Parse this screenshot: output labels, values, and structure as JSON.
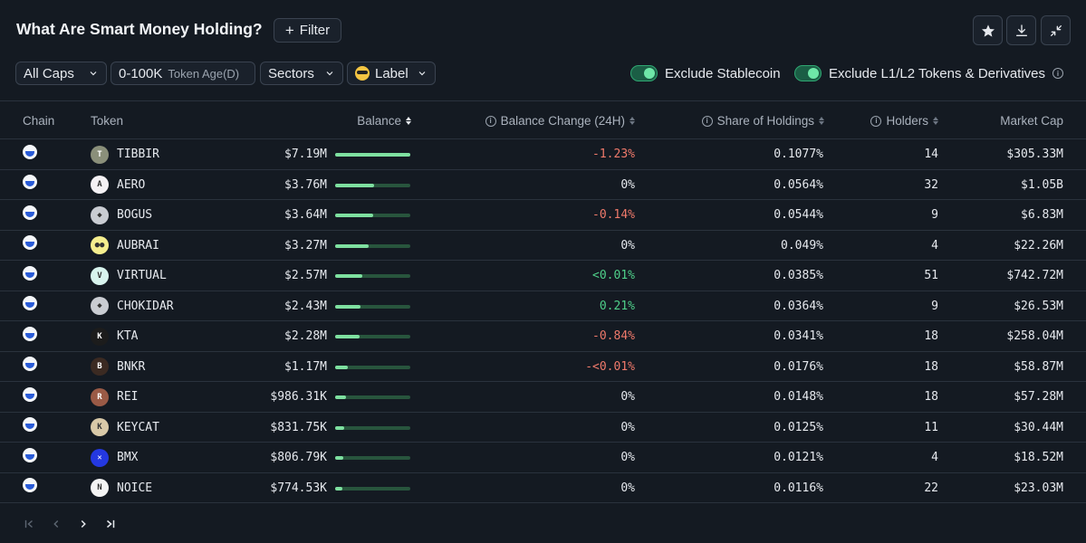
{
  "header": {
    "title": "What Are Smart Money Holding?",
    "filter_label": "Filter"
  },
  "filters": {
    "caps": "All Caps",
    "token_age_value": "0-100K",
    "token_age_label": "Token Age(D)",
    "sectors": "Sectors",
    "label": "Label",
    "exclude_stablecoin": "Exclude Stablecoin",
    "exclude_l1l2": "Exclude L1/L2 Tokens & Derivatives"
  },
  "columns": {
    "chain": "Chain",
    "token": "Token",
    "balance": "Balance",
    "balance_change": "Balance Change (24H)",
    "share": "Share of Holdings",
    "holders": "Holders",
    "market_cap": "Market Cap"
  },
  "rows": [
    {
      "token": "TIBBIR",
      "balance": "$7.19M",
      "bar": 1.0,
      "change": "-1.23%",
      "change_tone": "neg",
      "share": "0.1077%",
      "holders": "14",
      "mcap": "$305.33M",
      "icon_color": "#8a8f7a",
      "icon_glyph": "T"
    },
    {
      "token": "AERO",
      "balance": "$3.76M",
      "bar": 0.52,
      "change": "0%",
      "change_tone": "neu",
      "share": "0.0564%",
      "holders": "32",
      "mcap": "$1.05B",
      "icon_color": "#f4f1f4",
      "icon_glyph": "A"
    },
    {
      "token": "BOGUS",
      "balance": "$3.64M",
      "bar": 0.5,
      "change": "-0.14%",
      "change_tone": "neg",
      "share": "0.0544%",
      "holders": "9",
      "mcap": "$6.83M",
      "icon_color": "#c9ccd2",
      "icon_glyph": "◆"
    },
    {
      "token": "AUBRAI",
      "balance": "$3.27M",
      "bar": 0.45,
      "change": "0%",
      "change_tone": "neu",
      "share": "0.049%",
      "holders": "4",
      "mcap": "$22.26M",
      "icon_color": "#f5ee8e",
      "icon_glyph": "●●"
    },
    {
      "token": "VIRTUAL",
      "balance": "$2.57M",
      "bar": 0.36,
      "change": "<0.01%",
      "change_tone": "pos",
      "share": "0.0385%",
      "holders": "51",
      "mcap": "$742.72M",
      "icon_color": "#d8f4ee",
      "icon_glyph": "V"
    },
    {
      "token": "CHOKIDAR",
      "balance": "$2.43M",
      "bar": 0.34,
      "change": "0.21%",
      "change_tone": "pos",
      "share": "0.0364%",
      "holders": "9",
      "mcap": "$26.53M",
      "icon_color": "#c9ccd2",
      "icon_glyph": "◆"
    },
    {
      "token": "KTA",
      "balance": "$2.28M",
      "bar": 0.32,
      "change": "-0.84%",
      "change_tone": "neg",
      "share": "0.0341%",
      "holders": "18",
      "mcap": "$258.04M",
      "icon_color": "#1c1c1c",
      "icon_glyph": "K"
    },
    {
      "token": "BNKR",
      "balance": "$1.17M",
      "bar": 0.17,
      "change": "-<0.01%",
      "change_tone": "neg",
      "share": "0.0176%",
      "holders": "18",
      "mcap": "$58.87M",
      "icon_color": "#3b2a22",
      "icon_glyph": "B"
    },
    {
      "token": "REI",
      "balance": "$986.31K",
      "bar": 0.14,
      "change": "0%",
      "change_tone": "neu",
      "share": "0.0148%",
      "holders": "18",
      "mcap": "$57.28M",
      "icon_color": "#9a5a46",
      "icon_glyph": "R"
    },
    {
      "token": "KEYCAT",
      "balance": "$831.75K",
      "bar": 0.12,
      "change": "0%",
      "change_tone": "neu",
      "share": "0.0125%",
      "holders": "11",
      "mcap": "$30.44M",
      "icon_color": "#d9c9a8",
      "icon_glyph": "K"
    },
    {
      "token": "BMX",
      "balance": "$806.79K",
      "bar": 0.11,
      "change": "0%",
      "change_tone": "neu",
      "share": "0.0121%",
      "holders": "4",
      "mcap": "$18.52M",
      "icon_color": "#2438e0",
      "icon_glyph": "✕"
    },
    {
      "token": "NOICE",
      "balance": "$774.53K",
      "bar": 0.1,
      "change": "0%",
      "change_tone": "neu",
      "share": "0.0116%",
      "holders": "22",
      "mcap": "$23.03M",
      "icon_color": "#f4f4f4",
      "icon_glyph": "N"
    }
  ],
  "icons": {
    "favorite": "star-icon",
    "download": "download-icon",
    "collapse": "collapse-icon"
  }
}
